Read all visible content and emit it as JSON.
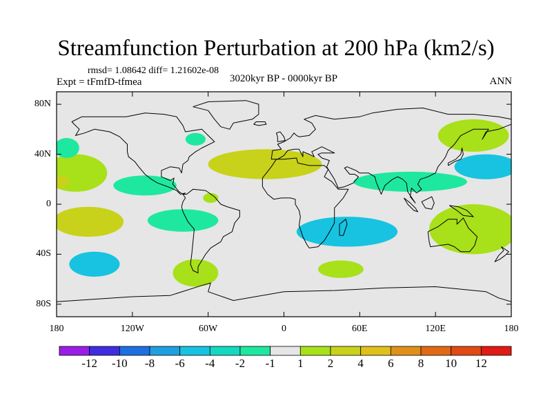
{
  "title": "Streamfunction Perturbation at 200 hPa (km2/s)",
  "stats": "rmsd= 1.08642  diff= 1.21602e-08",
  "experiment": "Expt = tFmfD-tfmea",
  "period": "3020kyr BP - 0000kyr BP",
  "season": "ANN",
  "chart_data": {
    "type": "heatmap",
    "projection": "cylindrical equidistant",
    "xlim": [
      -180,
      180
    ],
    "ylim": [
      -90,
      90
    ],
    "y_ticks": [
      {
        "value": 80,
        "label": "80N"
      },
      {
        "value": 40,
        "label": "40N"
      },
      {
        "value": 0,
        "label": "0"
      },
      {
        "value": -40,
        "label": "40S"
      },
      {
        "value": -80,
        "label": "80S"
      }
    ],
    "x_ticks": [
      {
        "value": -180,
        "label": "180"
      },
      {
        "value": -120,
        "label": "120W"
      },
      {
        "value": -60,
        "label": "60W"
      },
      {
        "value": 0,
        "label": "0"
      },
      {
        "value": 60,
        "label": "60E"
      },
      {
        "value": 120,
        "label": "120E"
      },
      {
        "value": 180,
        "label": "180"
      }
    ],
    "background_color": "#e6e6e6",
    "colorbar": {
      "labels": [
        "-12",
        "-10",
        "-8",
        "-6",
        "-4",
        "-2",
        "-1",
        "1",
        "2",
        "4",
        "6",
        "8",
        "10",
        "12"
      ],
      "colors": [
        "#9a1de6",
        "#3f2ee0",
        "#1e6fe0",
        "#1e9fe0",
        "#17c3e0",
        "#14d8c0",
        "#1ee8a0",
        "#e6e6e6",
        "#a8e01a",
        "#c8d21a",
        "#e0c01a",
        "#e0901a",
        "#e06a14",
        "#e04a14",
        "#e01a14"
      ]
    },
    "regions": [
      {
        "name": "north-pacific-positive",
        "value": 1.5,
        "color": "#a8e01a",
        "center": [
          -165,
          25
        ],
        "radius": [
          25,
          15
        ]
      },
      {
        "name": "north-pacific-core",
        "value": 3,
        "color": "#c8d21a",
        "center": [
          -178,
          18
        ],
        "radius": [
          8,
          5
        ]
      },
      {
        "name": "east-pacific-negative",
        "value": -1.5,
        "color": "#1ee8a0",
        "center": [
          -110,
          15
        ],
        "radius": [
          25,
          8
        ]
      },
      {
        "name": "northwest-atlantic-negative",
        "value": -1.5,
        "color": "#1ee8a0",
        "center": [
          -172,
          45
        ],
        "radius": [
          10,
          8
        ]
      },
      {
        "name": "labrador-negative",
        "value": -1.5,
        "color": "#1ee8a0",
        "center": [
          -70,
          52
        ],
        "radius": [
          8,
          5
        ]
      },
      {
        "name": "north-atlantic-positive",
        "value": 2.5,
        "color": "#c8d21a",
        "center": [
          -15,
          32
        ],
        "radius": [
          45,
          12
        ]
      },
      {
        "name": "caribbean-positive",
        "value": 1.5,
        "color": "#a8e01a",
        "center": [
          -58,
          5
        ],
        "radius": [
          6,
          4
        ]
      },
      {
        "name": "south-american-negative",
        "value": -1.5,
        "color": "#1ee8a0",
        "center": [
          -80,
          -13
        ],
        "radius": [
          28,
          9
        ]
      },
      {
        "name": "south-pacific-positive",
        "value": 2,
        "color": "#c8d21a",
        "center": [
          -155,
          -14
        ],
        "radius": [
          28,
          12
        ]
      },
      {
        "name": "south-pacific-negative",
        "value": -2.5,
        "color": "#17c3e0",
        "center": [
          -150,
          -48
        ],
        "radius": [
          20,
          10
        ]
      },
      {
        "name": "patagonia-positive",
        "value": 1.5,
        "color": "#a8e01a",
        "center": [
          -70,
          -55
        ],
        "radius": [
          18,
          11
        ]
      },
      {
        "name": "south-indian-negative",
        "value": -3,
        "color": "#17c3e0",
        "center": [
          50,
          -22
        ],
        "radius": [
          40,
          12
        ]
      },
      {
        "name": "southern-ocean-positive",
        "value": 1.5,
        "color": "#a8e01a",
        "center": [
          45,
          -52
        ],
        "radius": [
          18,
          7
        ]
      },
      {
        "name": "asian-jet-negative",
        "value": -2,
        "color": "#1ee8a0",
        "center": [
          100,
          18
        ],
        "radius": [
          45,
          8
        ]
      },
      {
        "name": "north-pacific-west-positive",
        "value": 1.5,
        "color": "#a8e01a",
        "center": [
          150,
          55
        ],
        "radius": [
          28,
          13
        ]
      },
      {
        "name": "west-pacific-negative",
        "value": -3,
        "color": "#17c3e0",
        "center": [
          160,
          30
        ],
        "radius": [
          25,
          10
        ]
      },
      {
        "name": "australia-positive",
        "value": 2,
        "color": "#a8e01a",
        "center": [
          150,
          -20
        ],
        "radius": [
          35,
          20
        ]
      }
    ]
  }
}
